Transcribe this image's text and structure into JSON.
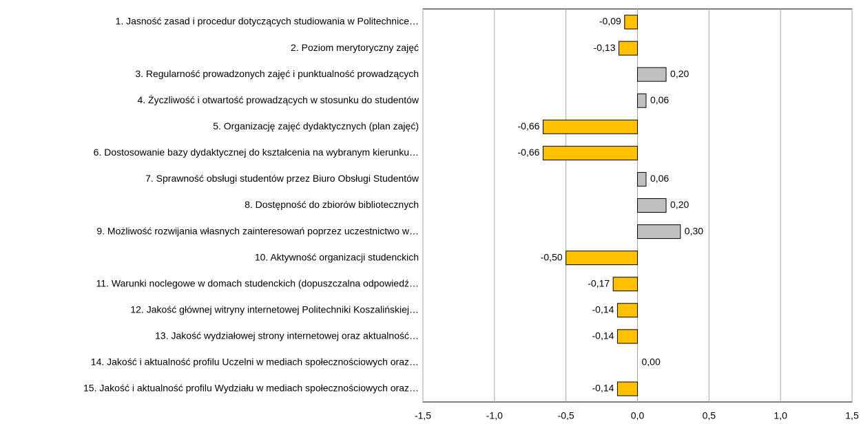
{
  "chart_data": {
    "type": "hbar",
    "categories": [
      "1. Jasność zasad i procedur dotyczących studiowania w Politechnice…",
      "2. Poziom merytoryczny zajęć",
      "3. Regularność prowadzonych zajęć i punktualność prowadzących",
      "4. Życzliwość i otwartość prowadzących w stosunku do studentów",
      "5. Organizację zajęć dydaktycznych (plan zajęć)",
      "6. Dostosowanie bazy dydaktycznej do kształcenia na wybranym kierunku…",
      "7. Sprawność obsługi studentów przez Biuro Obsługi Studentów",
      "8. Dostępność do zbiorów bibliotecznych",
      "9. Możliwość rozwijania własnych zainteresowań poprzez uczestnictwo w…",
      "10. Aktywność organizacji studenckich",
      "11. Warunki noclegowe w domach studenckich (dopuszczalna odpowiedź…",
      "12. Jakość głównej witryny internetowej Politechniki Koszalińskiej…",
      "13. Jakość wydziałowej strony internetowej oraz aktualność…",
      "14. Jakość i aktualność profilu Uczelni w mediach społecznościowych oraz…",
      "15. Jakość i aktualność profilu Wydziału w mediach społecznościowych oraz…"
    ],
    "values": [
      -0.09,
      -0.13,
      0.2,
      0.06,
      -0.66,
      -0.66,
      0.06,
      0.2,
      0.3,
      -0.5,
      -0.17,
      -0.14,
      -0.14,
      0,
      -0.14
    ],
    "value_labels": [
      "-0,09",
      "-0,13",
      "0,20",
      "0,06",
      "-0,66",
      "-0,66",
      "0,06",
      "0,20",
      "0,30",
      "-0,50",
      "-0,17",
      "-0,14",
      "-0,14",
      "0,00",
      "-0,14"
    ],
    "color_positive": "#c0c0c0",
    "color_negative": "#ffc000",
    "xlim": [
      -1.5,
      1.5
    ],
    "xticks": [
      {
        "value": -1.5,
        "label": "-1,5"
      },
      {
        "value": -1,
        "label": "-1,0"
      },
      {
        "value": -0.5,
        "label": "-0,5"
      },
      {
        "value": 0,
        "label": "0,0"
      },
      {
        "value": 0.5,
        "label": "0,5"
      },
      {
        "value": 1,
        "label": "1,0"
      },
      {
        "value": 1.5,
        "label": "1,5"
      }
    ],
    "grid": true
  }
}
